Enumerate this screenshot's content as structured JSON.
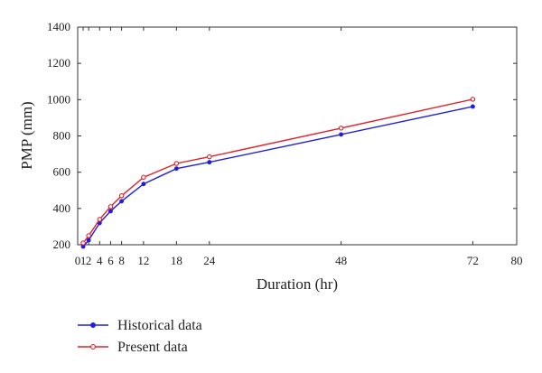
{
  "chart_data": {
    "type": "line",
    "title": "",
    "xlabel": "Duration (hr)",
    "ylabel": "PMP (mm)",
    "xlim": [
      0,
      80
    ],
    "ylim": [
      200,
      1400
    ],
    "xticks": [
      0,
      1,
      2,
      4,
      6,
      8,
      12,
      18,
      24,
      48,
      72,
      80
    ],
    "xtick_labels": [
      "0",
      "1",
      "2",
      "4",
      "6",
      "8",
      "12",
      "18",
      "24",
      "48",
      "72",
      "80"
    ],
    "yticks": [
      200,
      400,
      600,
      800,
      1000,
      1200,
      1400
    ],
    "ytick_labels": [
      "200",
      "400",
      "600",
      "800",
      "1000",
      "1200",
      "1400"
    ],
    "grid": false,
    "legend_position": "bottom-left, below the plot",
    "x": [
      1,
      2,
      4,
      6,
      8,
      12,
      18,
      24,
      48,
      72
    ],
    "series": [
      {
        "name": "Historical data",
        "color": "#1f1fdc",
        "marker": "filled-circle",
        "values": [
          190,
          225,
          320,
          385,
          440,
          535,
          620,
          655,
          808,
          962
        ]
      },
      {
        "name": "Present data",
        "color": "#e0202a",
        "marker": "open-circle",
        "values": [
          210,
          250,
          340,
          410,
          470,
          572,
          648,
          685,
          843,
          1002
        ]
      }
    ]
  }
}
